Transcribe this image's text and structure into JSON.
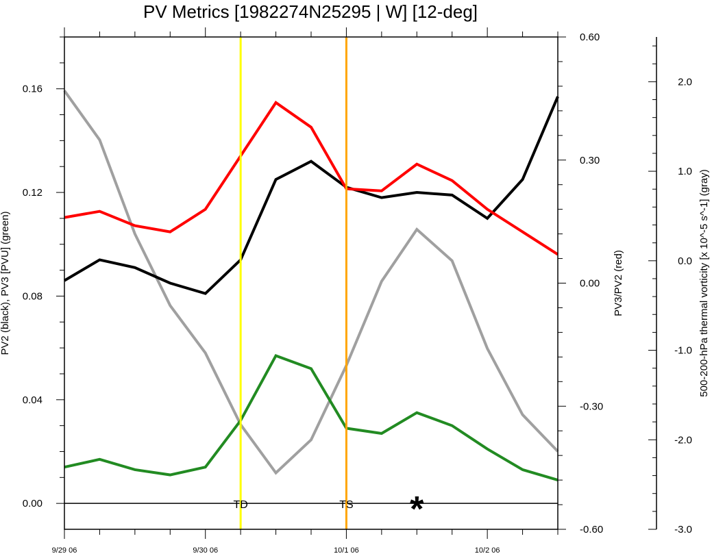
{
  "chart_data": {
    "type": "line",
    "title": "PV Metrics [1982274N25295 | W] [12-deg]",
    "x": [
      0,
      0.25,
      0.5,
      0.75,
      1.0,
      1.25,
      1.5,
      1.75,
      2.0,
      2.25,
      2.5,
      2.75,
      3.0,
      3.25,
      3.5
    ],
    "x_ticks": [
      {
        "value": 0,
        "label": "9/29 06"
      },
      {
        "value": 1,
        "label": "9/30 06"
      },
      {
        "value": 2,
        "label": "10/1 06"
      },
      {
        "value": 3,
        "label": "10/2 06"
      }
    ],
    "xlim": [
      0,
      3.5
    ],
    "axes": {
      "left": {
        "label": "PV2 (black), PV3 [PVU] (green)",
        "ylim": [
          -0.01,
          0.18
        ],
        "ticks": [
          0.0,
          0.04,
          0.08,
          0.12,
          0.16
        ],
        "tick_labels": [
          "0.00",
          "0.04",
          "0.08",
          "0.12",
          "0.16"
        ]
      },
      "right": {
        "label": "PV3/PV2 (red)",
        "ylim": [
          -0.6,
          0.6
        ],
        "ticks": [
          -0.6,
          -0.3,
          0.0,
          0.3,
          0.6
        ],
        "tick_labels": [
          "-0.60",
          "-0.30",
          "0.00",
          "0.30",
          "0.60"
        ]
      },
      "far_right": {
        "label": "500-200-hPa thermal vorticity [x 10^-5 s^-1] (gray)",
        "ylim": [
          -3.0,
          2.5
        ],
        "ticks": [
          -3.0,
          -2.0,
          -1.0,
          0.0,
          1.0,
          2.0
        ],
        "tick_labels": [
          "-3.0",
          "-2.0",
          "-1.0",
          "0.0",
          "1.0",
          "2.0"
        ]
      }
    },
    "series": [
      {
        "axis": "left",
        "color": "#000000",
        "values": [
          0.086,
          0.094,
          0.091,
          0.085,
          0.081,
          0.094,
          0.125,
          0.132,
          0.122,
          0.118,
          0.12,
          0.119,
          0.11,
          0.125,
          0.157
        ]
      },
      {
        "axis": "left",
        "color": "#228b22",
        "values": [
          0.014,
          0.017,
          0.013,
          0.011,
          0.014,
          0.032,
          0.057,
          0.052,
          0.029,
          0.027,
          0.035,
          0.03,
          0.021,
          0.013,
          0.009
        ]
      },
      {
        "axis": "right",
        "color": "#ff0000",
        "values": [
          0.16,
          0.175,
          0.14,
          0.125,
          0.18,
          0.31,
          0.44,
          0.38,
          0.23,
          0.225,
          0.29,
          0.25,
          0.18,
          0.125,
          0.07
        ]
      },
      {
        "axis": "far_right",
        "color": "#a0a0a0",
        "values": [
          1.9,
          1.35,
          0.3,
          -0.5,
          -1.03,
          -1.83,
          -2.37,
          -2.0,
          -1.17,
          -0.23,
          0.35,
          0.0,
          -0.98,
          -1.72,
          -2.13
        ]
      }
    ],
    "vertical_lines": [
      {
        "x": 1.25,
        "color": "#ffff00",
        "label": "TD"
      },
      {
        "x": 2.0,
        "color": "#ffa500",
        "label": "TS"
      }
    ],
    "markers": [
      {
        "x": 2.5,
        "y": 0.0,
        "axis": "left",
        "symbol": "*"
      }
    ],
    "zero_line": {
      "axis": "left",
      "y": 0.0
    },
    "grid": false,
    "legend": "none"
  }
}
